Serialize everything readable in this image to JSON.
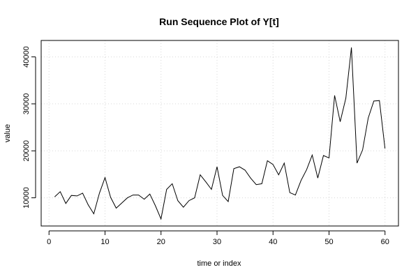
{
  "chart_data": {
    "type": "line",
    "title": "Run Sequence Plot of Y[t]",
    "xlabel": "time or index",
    "ylabel": "value",
    "xlim": [
      -1.4,
      62.4
    ],
    "ylim": [
      4000,
      43500
    ],
    "xticks": [
      0,
      10,
      20,
      30,
      40,
      50,
      60
    ],
    "yticks": [
      10000,
      20000,
      30000,
      40000
    ],
    "grid": true,
    "series": [
      {
        "color": "#000000",
        "x": [
          1,
          2,
          3,
          4,
          5,
          6,
          7,
          8,
          9,
          10,
          11,
          12,
          13,
          14,
          15,
          16,
          17,
          18,
          19,
          20,
          21,
          22,
          23,
          24,
          25,
          26,
          27,
          28,
          29,
          30,
          31,
          32,
          33,
          34,
          35,
          36,
          37,
          38,
          39,
          40,
          41,
          42,
          43,
          44,
          45,
          46,
          47,
          48,
          49,
          50,
          51,
          52,
          53,
          54,
          55,
          56,
          57,
          58,
          59,
          60
        ],
        "values": [
          10200,
          11300,
          8800,
          10500,
          10400,
          11000,
          8500,
          6600,
          11000,
          14300,
          10100,
          7800,
          8900,
          10000,
          10600,
          10600,
          9700,
          10800,
          8300,
          5500,
          11800,
          13000,
          9400,
          8000,
          9400,
          10000,
          14900,
          13400,
          11800,
          16600,
          10500,
          9200,
          16200,
          16600,
          15900,
          14200,
          12800,
          13000,
          17900,
          17100,
          14900,
          17400,
          11100,
          10600,
          13700,
          16000,
          19100,
          14200,
          19000,
          18500,
          31800,
          26200,
          31200,
          42000,
          17400,
          20200,
          27000,
          30600,
          30700,
          20500
        ]
      }
    ]
  }
}
